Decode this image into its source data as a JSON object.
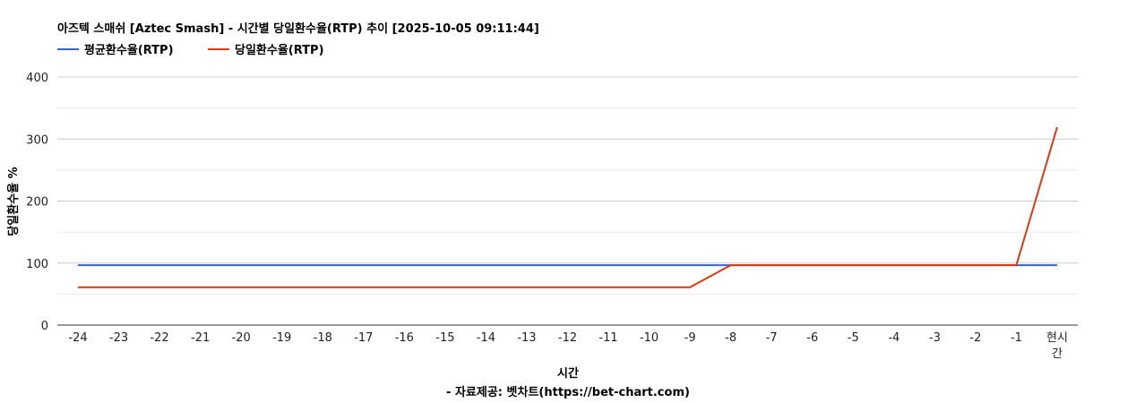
{
  "chart_data": {
    "type": "line",
    "title": "아즈텍 스매쉬 [Aztec Smash] - 시간별 당일환수율(RTP) 추이 [2025-10-05 09:11:44]",
    "xlabel": "시간",
    "xlabel_sub": "- 자료제공: 벳차트(https://bet-chart.com)",
    "ylabel": "당일환수율 %",
    "ylim": [
      0,
      400
    ],
    "yticks": [
      0,
      100,
      200,
      300,
      400
    ],
    "grid": true,
    "legend_position": "top-left",
    "categories": [
      "-24",
      "-23",
      "-22",
      "-21",
      "-20",
      "-19",
      "-18",
      "-17",
      "-16",
      "-15",
      "-14",
      "-13",
      "-12",
      "-11",
      "-10",
      "-9",
      "-8",
      "-7",
      "-6",
      "-5",
      "-4",
      "-3",
      "-2",
      "-1",
      "현시간"
    ],
    "series": [
      {
        "name": "평균환수율(RTP)",
        "color": "#3366cc",
        "values": [
          96.5,
          96.5,
          96.5,
          96.5,
          96.5,
          96.5,
          96.5,
          96.5,
          96.5,
          96.5,
          96.5,
          96.5,
          96.5,
          96.5,
          96.5,
          96.5,
          96.5,
          96.5,
          96.5,
          96.5,
          96.5,
          96.5,
          96.5,
          96.5,
          96.5
        ]
      },
      {
        "name": "당일환수율(RTP)",
        "color": "#dc3912",
        "values": [
          61,
          61,
          61,
          61,
          61,
          61,
          61,
          61,
          61,
          61,
          61,
          61,
          61,
          61,
          61,
          61,
          96.5,
          96.5,
          96.5,
          96.5,
          96.5,
          96.5,
          96.5,
          96.5,
          319
        ]
      }
    ]
  }
}
